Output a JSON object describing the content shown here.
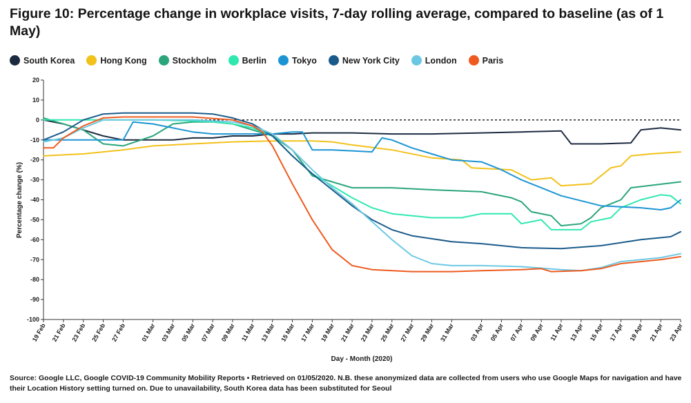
{
  "chart_data": {
    "type": "line",
    "title": "Figure 10: Percentage change in workplace visits, 7-day rolling average, compared to baseline (as of 1 May)",
    "xlabel": "Day - Month (2020)",
    "ylabel": "Percentage change (%)",
    "ylim": [
      -100,
      20
    ],
    "yticks": [
      20,
      10,
      0,
      -10,
      -20,
      -30,
      -40,
      -50,
      -60,
      -70,
      -80,
      -90,
      -100
    ],
    "x_start": "2020-02-19",
    "x_end": "2020-04-23",
    "x_tick_labels": [
      "19 Feb",
      "21 Feb",
      "23 Feb",
      "25 Feb",
      "27 Feb",
      "01 Mar",
      "03 Mar",
      "05 Mar",
      "07 Mar",
      "09 Mar",
      "11 Mar",
      "13 Mar",
      "15 Mar",
      "17 Mar",
      "19 Mar",
      "21 Mar",
      "23 Mar",
      "25 Mar",
      "27 Mar",
      "29 Mar",
      "31 Mar",
      "03 Apr",
      "05 Apr",
      "07 Apr",
      "09 Apr",
      "11 Apr",
      "13 Apr",
      "15 Apr",
      "17 Apr",
      "19 Apr",
      "21 Apr",
      "23 Apr"
    ],
    "baseline": 0,
    "grid": false,
    "legend_position": "top",
    "source": "Source: Google LLC, Google COVID-19 Community Mobility Reports • Retrieved on 01/05/2020. N.B. these anonymized data are collected from users who use Google Maps for navigation and have their Location History setting turned on. Due to unavailability, South Korea data has been substituted for Seoul",
    "series": [
      {
        "name": "South Korea",
        "color": "#1c2a40",
        "points": [
          [
            "2020-02-19",
            0
          ],
          [
            "2020-02-21",
            -2
          ],
          [
            "2020-02-23",
            -5
          ],
          [
            "2020-02-25",
            -8
          ],
          [
            "2020-02-27",
            -10
          ],
          [
            "2020-03-01",
            -10
          ],
          [
            "2020-03-03",
            -10
          ],
          [
            "2020-03-05",
            -9
          ],
          [
            "2020-03-07",
            -9
          ],
          [
            "2020-03-09",
            -8
          ],
          [
            "2020-03-11",
            -8
          ],
          [
            "2020-03-13",
            -7
          ],
          [
            "2020-03-15",
            -7
          ],
          [
            "2020-03-17",
            -6.5
          ],
          [
            "2020-03-21",
            -6.5
          ],
          [
            "2020-03-25",
            -7
          ],
          [
            "2020-03-29",
            -7
          ],
          [
            "2020-04-03",
            -6.5
          ],
          [
            "2020-04-07",
            -6
          ],
          [
            "2020-04-11",
            -5.5
          ],
          [
            "2020-04-12",
            -12
          ],
          [
            "2020-04-15",
            -12
          ],
          [
            "2020-04-18",
            -11.5
          ],
          [
            "2020-04-19",
            -5
          ],
          [
            "2020-04-21",
            -4
          ],
          [
            "2020-04-23",
            -5
          ]
        ]
      },
      {
        "name": "Hong Kong",
        "color": "#f2c11a",
        "points": [
          [
            "2020-02-19",
            -18
          ],
          [
            "2020-02-23",
            -17
          ],
          [
            "2020-02-27",
            -15
          ],
          [
            "2020-03-01",
            -13
          ],
          [
            "2020-03-05",
            -12
          ],
          [
            "2020-03-09",
            -11
          ],
          [
            "2020-03-13",
            -10.5
          ],
          [
            "2020-03-17",
            -10.5
          ],
          [
            "2020-03-19",
            -11
          ],
          [
            "2020-03-21",
            -12.5
          ],
          [
            "2020-03-25",
            -15
          ],
          [
            "2020-03-29",
            -19
          ],
          [
            "2020-04-01",
            -20
          ],
          [
            "2020-04-02",
            -24
          ],
          [
            "2020-04-06",
            -25
          ],
          [
            "2020-04-08",
            -30
          ],
          [
            "2020-04-10",
            -29
          ],
          [
            "2020-04-11",
            -33
          ],
          [
            "2020-04-14",
            -32
          ],
          [
            "2020-04-15",
            -28
          ],
          [
            "2020-04-16",
            -24
          ],
          [
            "2020-04-17",
            -23
          ],
          [
            "2020-04-18",
            -18
          ],
          [
            "2020-04-20",
            -17
          ],
          [
            "2020-04-23",
            -16
          ]
        ]
      },
      {
        "name": "Stockholm",
        "color": "#2aa57c",
        "points": [
          [
            "2020-02-19",
            1
          ],
          [
            "2020-02-21",
            -2
          ],
          [
            "2020-02-23",
            -5
          ],
          [
            "2020-02-25",
            -12
          ],
          [
            "2020-02-27",
            -13
          ],
          [
            "2020-03-01",
            -8
          ],
          [
            "2020-03-03",
            -2
          ],
          [
            "2020-03-05",
            -1
          ],
          [
            "2020-03-07",
            -1
          ],
          [
            "2020-03-09",
            -2
          ],
          [
            "2020-03-11",
            -5
          ],
          [
            "2020-03-13",
            -8
          ],
          [
            "2020-03-15",
            -15
          ],
          [
            "2020-03-17",
            -28
          ],
          [
            "2020-03-19",
            -31
          ],
          [
            "2020-03-21",
            -34
          ],
          [
            "2020-03-25",
            -34
          ],
          [
            "2020-03-29",
            -35
          ],
          [
            "2020-04-03",
            -36
          ],
          [
            "2020-04-06",
            -39
          ],
          [
            "2020-04-07",
            -41
          ],
          [
            "2020-04-08",
            -46
          ],
          [
            "2020-04-10",
            -48
          ],
          [
            "2020-04-11",
            -53
          ],
          [
            "2020-04-13",
            -52
          ],
          [
            "2020-04-14",
            -49
          ],
          [
            "2020-04-15",
            -44
          ],
          [
            "2020-04-17",
            -40
          ],
          [
            "2020-04-18",
            -34
          ],
          [
            "2020-04-23",
            -31
          ]
        ]
      },
      {
        "name": "Berlin",
        "color": "#2ee8b0",
        "points": [
          [
            "2020-02-19",
            0
          ],
          [
            "2020-02-23",
            0
          ],
          [
            "2020-02-25",
            0
          ],
          [
            "2020-02-27",
            0
          ],
          [
            "2020-03-01",
            0
          ],
          [
            "2020-03-05",
            -0.5
          ],
          [
            "2020-03-07",
            -1
          ],
          [
            "2020-03-09",
            -2
          ],
          [
            "2020-03-11",
            -4
          ],
          [
            "2020-03-13",
            -8
          ],
          [
            "2020-03-15",
            -18
          ],
          [
            "2020-03-17",
            -27
          ],
          [
            "2020-03-19",
            -33
          ],
          [
            "2020-03-21",
            -39
          ],
          [
            "2020-03-23",
            -44
          ],
          [
            "2020-03-25",
            -47
          ],
          [
            "2020-03-29",
            -49
          ],
          [
            "2020-04-01",
            -49
          ],
          [
            "2020-04-03",
            -47
          ],
          [
            "2020-04-06",
            -47
          ],
          [
            "2020-04-07",
            -52
          ],
          [
            "2020-04-09",
            -50
          ],
          [
            "2020-04-10",
            -55
          ],
          [
            "2020-04-13",
            -55
          ],
          [
            "2020-04-14",
            -51
          ],
          [
            "2020-04-16",
            -49
          ],
          [
            "2020-04-17",
            -44
          ],
          [
            "2020-04-19",
            -40
          ],
          [
            "2020-04-21",
            -37.5
          ],
          [
            "2020-04-22",
            -38
          ],
          [
            "2020-04-23",
            -42
          ]
        ]
      },
      {
        "name": "Tokyo",
        "color": "#1b94d4",
        "points": [
          [
            "2020-02-19",
            -10
          ],
          [
            "2020-02-21",
            -10
          ],
          [
            "2020-02-23",
            -10
          ],
          [
            "2020-02-25",
            -10
          ],
          [
            "2020-02-27",
            -10
          ],
          [
            "2020-02-28",
            -1
          ],
          [
            "2020-03-01",
            -2
          ],
          [
            "2020-03-03",
            -4
          ],
          [
            "2020-03-05",
            -6
          ],
          [
            "2020-03-07",
            -7
          ],
          [
            "2020-03-09",
            -7
          ],
          [
            "2020-03-11",
            -7
          ],
          [
            "2020-03-13",
            -7
          ],
          [
            "2020-03-15",
            -6
          ],
          [
            "2020-03-16",
            -6
          ],
          [
            "2020-03-17",
            -15
          ],
          [
            "2020-03-19",
            -15
          ],
          [
            "2020-03-23",
            -16
          ],
          [
            "2020-03-24",
            -9
          ],
          [
            "2020-03-25",
            -10
          ],
          [
            "2020-03-27",
            -14
          ],
          [
            "2020-03-29",
            -17
          ],
          [
            "2020-03-31",
            -20
          ],
          [
            "2020-04-03",
            -21
          ],
          [
            "2020-04-05",
            -25
          ],
          [
            "2020-04-07",
            -30
          ],
          [
            "2020-04-09",
            -34
          ],
          [
            "2020-04-11",
            -38
          ],
          [
            "2020-04-15",
            -43
          ],
          [
            "2020-04-19",
            -44
          ],
          [
            "2020-04-21",
            -45
          ],
          [
            "2020-04-22",
            -44
          ],
          [
            "2020-04-23",
            -40
          ]
        ]
      },
      {
        "name": "New York City",
        "color": "#1a5a8a",
        "points": [
          [
            "2020-02-19",
            -10
          ],
          [
            "2020-02-21",
            -6
          ],
          [
            "2020-02-23",
            0
          ],
          [
            "2020-02-25",
            3
          ],
          [
            "2020-02-27",
            3.5
          ],
          [
            "2020-03-01",
            3.5
          ],
          [
            "2020-03-05",
            3.5
          ],
          [
            "2020-03-07",
            3
          ],
          [
            "2020-03-09",
            1
          ],
          [
            "2020-03-11",
            -2
          ],
          [
            "2020-03-13",
            -8
          ],
          [
            "2020-03-15",
            -18
          ],
          [
            "2020-03-17",
            -27
          ],
          [
            "2020-03-19",
            -35
          ],
          [
            "2020-03-21",
            -43
          ],
          [
            "2020-03-23",
            -50
          ],
          [
            "2020-03-25",
            -55
          ],
          [
            "2020-03-27",
            -58
          ],
          [
            "2020-03-31",
            -61
          ],
          [
            "2020-04-03",
            -62
          ],
          [
            "2020-04-07",
            -64
          ],
          [
            "2020-04-11",
            -64.5
          ],
          [
            "2020-04-15",
            -63
          ],
          [
            "2020-04-19",
            -60
          ],
          [
            "2020-04-22",
            -58.5
          ],
          [
            "2020-04-23",
            -56
          ]
        ]
      },
      {
        "name": "London",
        "color": "#6cc8e2",
        "points": [
          [
            "2020-02-19",
            -11
          ],
          [
            "2020-02-21",
            -9
          ],
          [
            "2020-02-23",
            -4
          ],
          [
            "2020-02-25",
            0
          ],
          [
            "2020-02-27",
            0
          ],
          [
            "2020-03-01",
            0
          ],
          [
            "2020-03-05",
            0
          ],
          [
            "2020-03-09",
            -1
          ],
          [
            "2020-03-11",
            -3
          ],
          [
            "2020-03-13",
            -7
          ],
          [
            "2020-03-15",
            -15
          ],
          [
            "2020-03-17",
            -25
          ],
          [
            "2020-03-19",
            -34
          ],
          [
            "2020-03-21",
            -42
          ],
          [
            "2020-03-23",
            -51
          ],
          [
            "2020-03-25",
            -60
          ],
          [
            "2020-03-27",
            -68
          ],
          [
            "2020-03-29",
            -72
          ],
          [
            "2020-03-31",
            -73
          ],
          [
            "2020-04-03",
            -73
          ],
          [
            "2020-04-07",
            -73.5
          ],
          [
            "2020-04-11",
            -75
          ],
          [
            "2020-04-13",
            -75.5
          ],
          [
            "2020-04-15",
            -74
          ],
          [
            "2020-04-17",
            -71
          ],
          [
            "2020-04-21",
            -69
          ],
          [
            "2020-04-23",
            -67
          ]
        ]
      },
      {
        "name": "Paris",
        "color": "#ee5a1f",
        "points": [
          [
            "2020-02-19",
            -14
          ],
          [
            "2020-02-20",
            -14
          ],
          [
            "2020-02-21",
            -9
          ],
          [
            "2020-02-23",
            -3
          ],
          [
            "2020-02-25",
            1
          ],
          [
            "2020-02-27",
            1.5
          ],
          [
            "2020-03-01",
            1.5
          ],
          [
            "2020-03-05",
            1.5
          ],
          [
            "2020-03-09",
            0
          ],
          [
            "2020-03-11",
            -3
          ],
          [
            "2020-03-12",
            -6
          ],
          [
            "2020-03-13",
            -13
          ],
          [
            "2020-03-15",
            -32
          ],
          [
            "2020-03-17",
            -50
          ],
          [
            "2020-03-19",
            -65
          ],
          [
            "2020-03-21",
            -73
          ],
          [
            "2020-03-23",
            -75
          ],
          [
            "2020-03-27",
            -76
          ],
          [
            "2020-03-31",
            -76
          ],
          [
            "2020-04-03",
            -75.5
          ],
          [
            "2020-04-07",
            -75
          ],
          [
            "2020-04-09",
            -74.5
          ],
          [
            "2020-04-10",
            -76
          ],
          [
            "2020-04-13",
            -75.5
          ],
          [
            "2020-04-15",
            -74.5
          ],
          [
            "2020-04-17",
            -72
          ],
          [
            "2020-04-21",
            -70
          ],
          [
            "2020-04-23",
            -68.5
          ]
        ]
      }
    ]
  }
}
